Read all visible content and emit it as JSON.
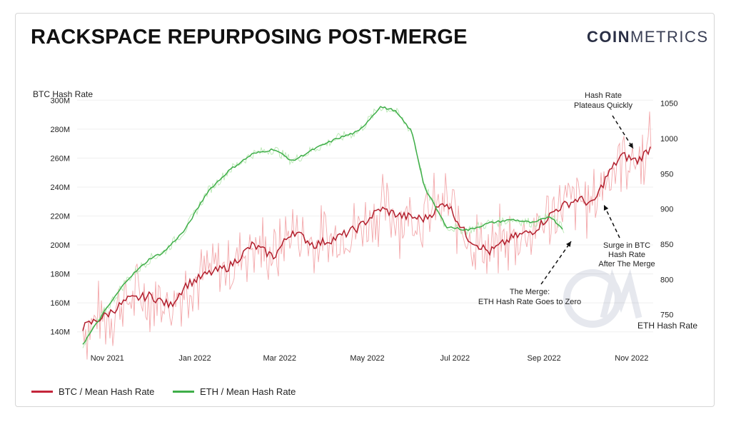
{
  "header": {
    "title": "RACKSPACE REPURPOSING POST-MERGE",
    "brand_bold": "COIN",
    "brand_light": "METRICS"
  },
  "colors": {
    "btc": "#b21f2d",
    "btc_raw": "#f3a8ab",
    "eth": "#3fae49",
    "eth_raw": "#b9e8b4"
  },
  "chart_data": {
    "type": "line",
    "x_ticks": [
      "Nov 2021",
      "Jan 2022",
      "Mar 2022",
      "May 2022",
      "Jul 2022",
      "Sep 2022",
      "Nov 2022"
    ],
    "y_left": {
      "label": "BTC Hash Rate",
      "range": [
        130,
        310
      ],
      "ticks": [
        140,
        160,
        180,
        200,
        220,
        240,
        260,
        280,
        300
      ],
      "tick_labels": [
        "140M",
        "160M",
        "180M",
        "200M",
        "220M",
        "240M",
        "260M",
        "280M",
        "300M"
      ]
    },
    "y_right": {
      "label": "ETH Hash Rate",
      "range": [
        705,
        1075
      ],
      "ticks": [
        750,
        800,
        850,
        900,
        950,
        1000,
        1050
      ],
      "tick_labels": [
        "750",
        "800",
        "850",
        "900",
        "950",
        "1000",
        "1050"
      ]
    },
    "series": [
      {
        "name": "BTC / Mean Hash Rate",
        "axis": "left",
        "x": [
          "2021-10-15",
          "2021-11-01",
          "2021-11-15",
          "2021-12-01",
          "2021-12-15",
          "2021-12-25",
          "2022-01-10",
          "2022-01-25",
          "2022-02-10",
          "2022-02-25",
          "2022-03-10",
          "2022-03-25",
          "2022-04-10",
          "2022-04-25",
          "2022-05-10",
          "2022-05-25",
          "2022-06-10",
          "2022-06-25",
          "2022-07-10",
          "2022-07-25",
          "2022-08-10",
          "2022-08-25",
          "2022-09-10",
          "2022-09-25",
          "2022-10-05",
          "2022-10-15",
          "2022-10-25",
          "2022-11-05",
          "2022-11-15"
        ],
        "values": [
          143,
          152,
          162,
          165,
          158,
          172,
          180,
          185,
          200,
          192,
          210,
          200,
          205,
          212,
          225,
          220,
          218,
          230,
          205,
          195,
          205,
          210,
          225,
          232,
          228,
          248,
          262,
          258,
          268
        ]
      },
      {
        "name": "ETH / Mean Hash Rate",
        "axis": "right",
        "x": [
          "2021-10-15",
          "2021-11-01",
          "2021-11-15",
          "2021-12-01",
          "2021-12-10",
          "2021-12-25",
          "2022-01-10",
          "2022-01-25",
          "2022-02-10",
          "2022-02-25",
          "2022-03-10",
          "2022-03-25",
          "2022-04-10",
          "2022-04-25",
          "2022-05-10",
          "2022-05-20",
          "2022-06-01",
          "2022-06-10",
          "2022-06-25",
          "2022-07-10",
          "2022-07-25",
          "2022-08-10",
          "2022-08-25",
          "2022-09-05",
          "2022-09-15"
        ],
        "values": [
          708,
          760,
          800,
          830,
          838,
          870,
          925,
          955,
          978,
          985,
          968,
          985,
          1000,
          1010,
          1045,
          1040,
          1010,
          930,
          875,
          870,
          880,
          885,
          880,
          890,
          870
        ]
      }
    ],
    "annotations": [
      {
        "text": [
          "Hash Rate",
          "Plateaus Quickly"
        ]
      },
      {
        "text": [
          "Surge in BTC",
          "Hash Rate",
          "After The Merge"
        ]
      },
      {
        "text": [
          "The Merge:",
          "ETH Hash Rate Goes to Zero"
        ]
      }
    ]
  }
}
